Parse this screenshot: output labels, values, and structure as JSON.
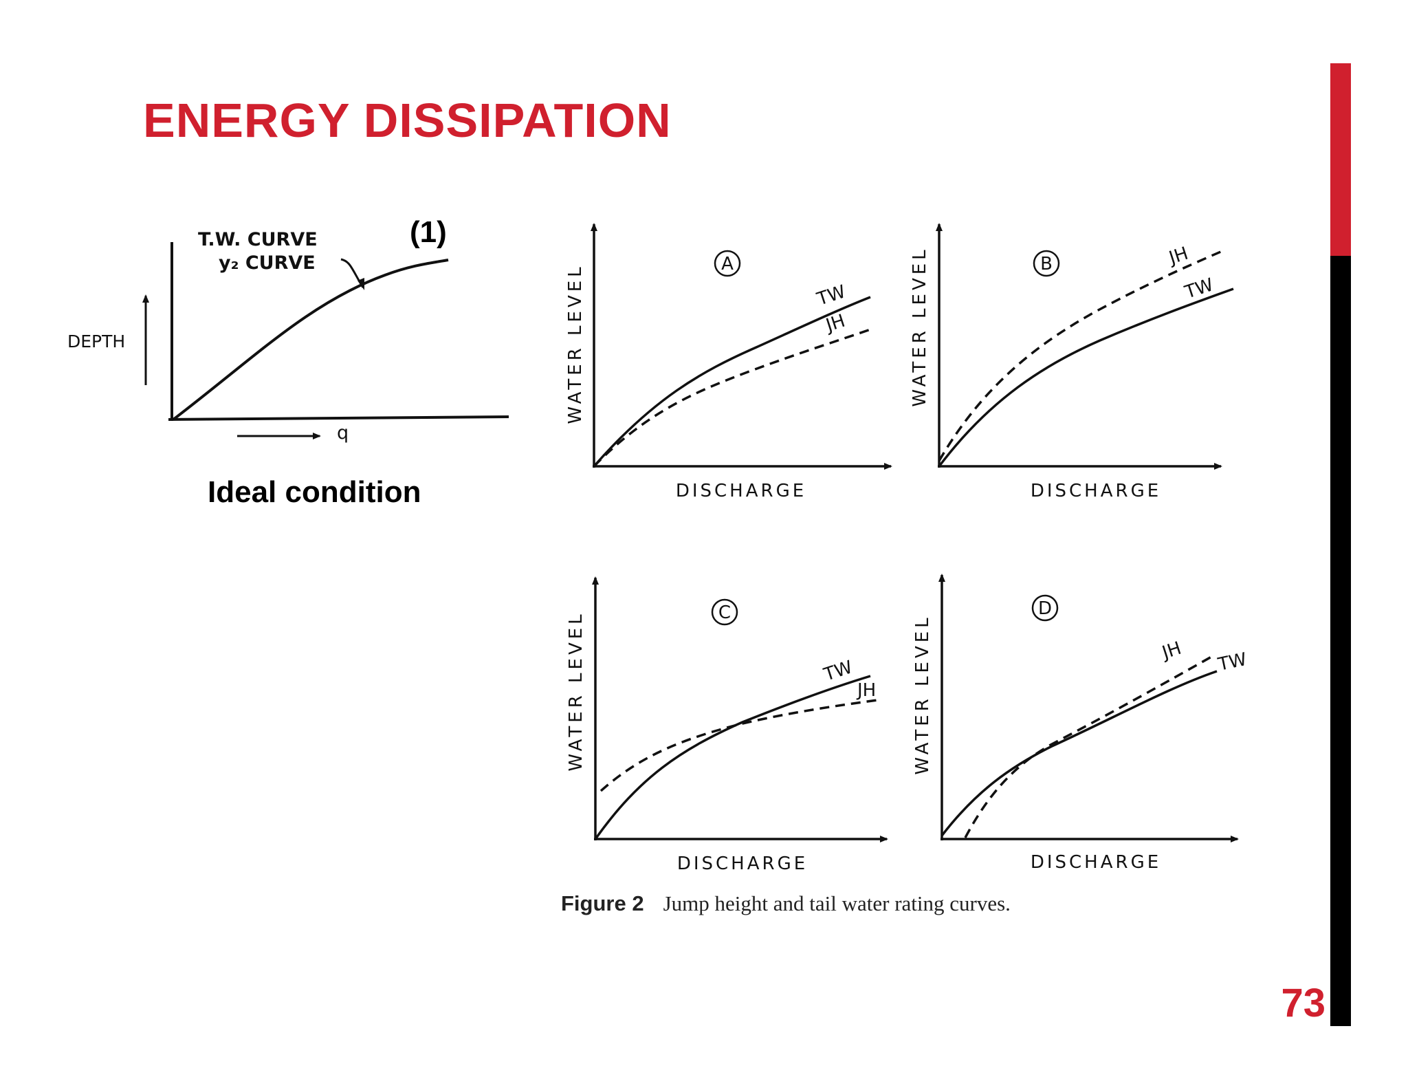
{
  "slide": {
    "title": "ENERGY DISSIPATION",
    "page_number": "73",
    "accent_color": "#d0202e"
  },
  "ideal": {
    "number": "(1)",
    "label": "Ideal condition",
    "curve_label_tw": "T.W. CURVE",
    "curve_label_y2": "y₂ CURVE",
    "y_axis": "DEPTH",
    "x_axis": "q"
  },
  "figure": {
    "caption_number": "Figure 2",
    "caption_text": "Jump height and tail water rating curves.",
    "panels": [
      {
        "id": "A",
        "y_axis": "WATER LEVEL",
        "x_axis": "DISCHARGE",
        "tw_label": "TW",
        "jh_label": "JH"
      },
      {
        "id": "B",
        "y_axis": "WATER LEVEL",
        "x_axis": "DISCHARGE",
        "tw_label": "TW",
        "jh_label": "JH"
      },
      {
        "id": "C",
        "y_axis": "WATER LEVEL",
        "x_axis": "DISCHARGE",
        "tw_label": "TW",
        "jh_label": "JH"
      },
      {
        "id": "D",
        "y_axis": "WATER LEVEL",
        "x_axis": "DISCHARGE",
        "tw_label": "TW",
        "jh_label": "JH"
      }
    ]
  }
}
